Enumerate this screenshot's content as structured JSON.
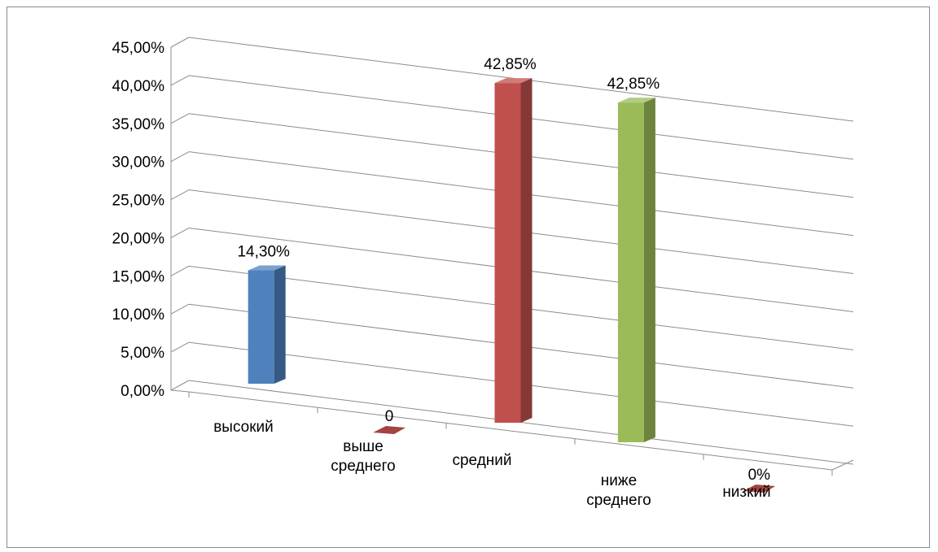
{
  "chart_data": {
    "type": "bar",
    "subtype": "3d-clustered-column",
    "categories": [
      [
        "высокий"
      ],
      [
        "выше",
        "среднего"
      ],
      [
        "средний"
      ],
      [
        "ниже",
        "среднего"
      ],
      [
        "низкий"
      ]
    ],
    "values": [
      14.3,
      0,
      42.85,
      42.85,
      0
    ],
    "data_labels": [
      "14,30%",
      "0",
      "42,85%",
      "42,85%",
      "0%"
    ],
    "bar_colors": [
      "#4f81bd",
      "#c0504d",
      "#c0504d",
      "#9bbb59",
      "#c0504d"
    ],
    "y_ticks": [
      "0,00%",
      "5,00%",
      "10,00%",
      "15,00%",
      "20,00%",
      "25,00%",
      "30,00%",
      "35,00%",
      "40,00%",
      "45,00%"
    ],
    "ylim": [
      0,
      45
    ],
    "title": "",
    "xlabel": "",
    "ylabel": "",
    "grid": true,
    "legend": "none"
  },
  "colors": {
    "gridline": "#8c8c8c",
    "frame": "#8c8c8c",
    "text": "#000000"
  }
}
